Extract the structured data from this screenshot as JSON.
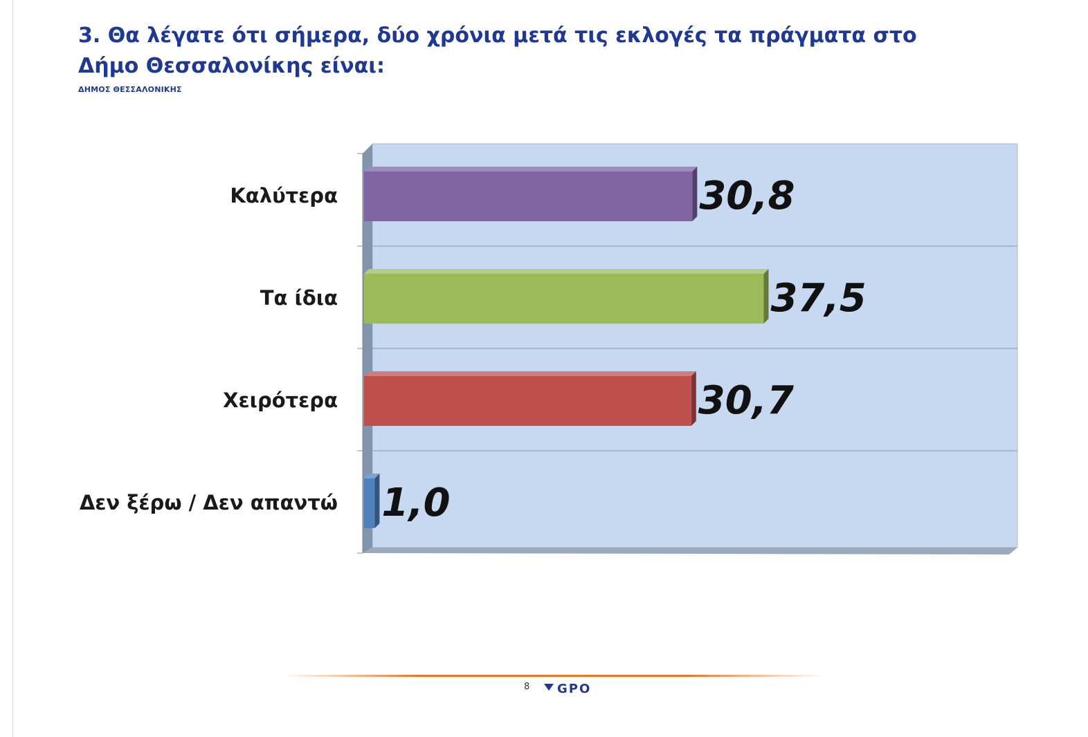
{
  "title": "3. Θα λέγατε ότι σήμερα, δύο χρόνια μετά τις εκλογές τα πράγματα στο Δήμο Θεσσαλονίκης είναι:",
  "subtitle": "ΔΗΜΟΣ ΘΕΣΣΑΛΟΝΙΚΗΣ",
  "footer": {
    "page_number": "8",
    "logo_text": "GPO",
    "logo_color": "#1f3894",
    "line_color": "#e87722"
  },
  "chart_data": {
    "type": "bar",
    "orientation": "horizontal",
    "categories": [
      "Καλύτερα",
      "Τα ίδια",
      "Χειρότερα",
      "Δεν ξέρω / Δεν απαντώ"
    ],
    "values": [
      30.8,
      37.5,
      30.7,
      1.0
    ],
    "value_labels": [
      "30,8",
      "37,5",
      "30,7",
      "1,0"
    ],
    "colors": [
      "#8064a2",
      "#9bbb59",
      "#c0504d",
      "#4f81bd"
    ],
    "xlim": [
      0,
      45
    ],
    "grid": true,
    "legend": "none",
    "plot_background": "#c6d9f1"
  }
}
